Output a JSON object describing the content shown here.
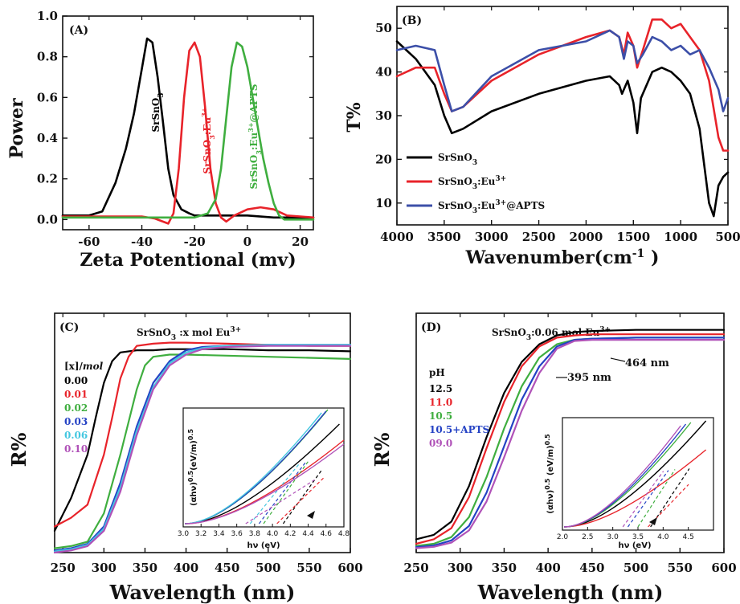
{
  "chart_data": [
    {
      "panel": "(A)",
      "type": "line",
      "xlabel": "Zeta Potentional (mv)",
      "ylabel": "Power",
      "xlim": [
        -70,
        25
      ],
      "ylim": [
        -0.05,
        1.0
      ],
      "xticks": [
        -60,
        -40,
        -20,
        0,
        20
      ],
      "yticks": [
        0.0,
        0.2,
        0.4,
        0.6,
        0.8,
        1.0
      ],
      "xtick_labels": [
        "-60",
        "-40",
        "-20",
        "0",
        "20"
      ],
      "ytick_labels": [
        "0.0",
        "0.2",
        "0.4",
        "0.6",
        "0.8",
        "1.0"
      ],
      "series": [
        {
          "name": "SrSnO3",
          "color": "#000000",
          "x": [
            -70,
            -60,
            -55,
            -50,
            -46,
            -43,
            -40,
            -38,
            -36,
            -34,
            -32,
            -30,
            -28,
            -25,
            -22,
            -20,
            -15,
            -10,
            0,
            10,
            25
          ],
          "y": [
            0.02,
            0.02,
            0.04,
            0.18,
            0.35,
            0.52,
            0.74,
            0.89,
            0.87,
            0.7,
            0.48,
            0.25,
            0.12,
            0.05,
            0.03,
            0.02,
            0.02,
            0.02,
            0.02,
            0.01,
            0.01
          ]
        },
        {
          "name": "SrSnO3:Eu3+",
          "color": "#e8232a",
          "x": [
            -70,
            -40,
            -35,
            -30,
            -28,
            -26,
            -24,
            -22,
            -20,
            -18,
            -16,
            -14,
            -12,
            -10,
            -8,
            -5,
            0,
            5,
            10,
            15,
            25
          ],
          "y": [
            0.015,
            0.015,
            0.005,
            -0.02,
            0.03,
            0.25,
            0.6,
            0.83,
            0.87,
            0.8,
            0.55,
            0.25,
            0.08,
            0.01,
            -0.01,
            0.02,
            0.05,
            0.06,
            0.05,
            0.02,
            0.01
          ]
        },
        {
          "name": "SrSnO3:Eu3+@APTS",
          "color": "#3fae3f",
          "x": [
            -70,
            -30,
            -20,
            -15,
            -12,
            -10,
            -8,
            -6,
            -4,
            -2,
            0,
            2,
            4,
            6,
            8,
            10,
            12,
            14,
            20,
            25
          ],
          "y": [
            0.01,
            0.01,
            0.01,
            0.03,
            0.1,
            0.25,
            0.5,
            0.75,
            0.87,
            0.85,
            0.75,
            0.6,
            0.45,
            0.3,
            0.18,
            0.08,
            0.02,
            0.0,
            0.0,
            0.0
          ]
        }
      ],
      "annotations": [
        "SrSnO3",
        "SrSnO3:Eu3+",
        "SrSnO3:Eu3+@APTS"
      ]
    },
    {
      "panel": "(B)",
      "type": "line",
      "xlabel": "Wavenumber(cm-1 )",
      "ylabel": "T%",
      "xlim": [
        4000,
        500
      ],
      "ylim": [
        5,
        55
      ],
      "xticks": [
        4000,
        3500,
        3000,
        2500,
        2000,
        1500,
        1000,
        500
      ],
      "yticks": [
        10,
        20,
        30,
        40,
        50
      ],
      "xtick_labels": [
        "4000",
        "3500",
        "3000",
        "2500",
        "2000",
        "1500",
        "1000",
        "500"
      ],
      "ytick_labels": [
        "10",
        "20",
        "30",
        "40",
        "50"
      ],
      "series": [
        {
          "name": "SrSnO3",
          "color": "#000000",
          "x": [
            4000,
            3800,
            3600,
            3500,
            3420,
            3300,
            3000,
            2500,
            2000,
            1750,
            1650,
            1620,
            1600,
            1560,
            1500,
            1460,
            1420,
            1300,
            1200,
            1100,
            1000,
            900,
            800,
            700,
            650,
            600,
            550,
            500
          ],
          "y": [
            47,
            43,
            37,
            30,
            26,
            27,
            31,
            35,
            38,
            39,
            37,
            35,
            36,
            38,
            33,
            26,
            34,
            40,
            41,
            40,
            38,
            35,
            27,
            10,
            7,
            14,
            16,
            17
          ]
        },
        {
          "name": "SrSnO3:Eu3+",
          "color": "#e8232a",
          "x": [
            4000,
            3800,
            3600,
            3500,
            3420,
            3300,
            3000,
            2500,
            2000,
            1750,
            1650,
            1600,
            1560,
            1500,
            1460,
            1400,
            1300,
            1200,
            1100,
            1000,
            900,
            800,
            700,
            600,
            550,
            500
          ],
          "y": [
            39,
            41,
            41,
            35,
            31,
            32,
            38,
            44,
            48,
            49.5,
            48,
            44,
            49,
            46,
            41,
            45,
            52,
            52,
            50,
            51,
            48,
            45,
            38,
            25,
            22,
            22
          ]
        },
        {
          "name": "SrSnO3:Eu3+@APTS",
          "color": "#3c4fa8",
          "x": [
            4000,
            3800,
            3600,
            3500,
            3420,
            3300,
            3000,
            2500,
            2000,
            1750,
            1650,
            1600,
            1560,
            1500,
            1460,
            1400,
            1300,
            1200,
            1100,
            1000,
            900,
            800,
            700,
            600,
            550,
            500
          ],
          "y": [
            45,
            46,
            45,
            37,
            31,
            32,
            39,
            45,
            47,
            49.5,
            48,
            43,
            47,
            46,
            42,
            44,
            48,
            47,
            45,
            46,
            44,
            45,
            41,
            36,
            31,
            34
          ]
        }
      ],
      "legend_position": "bottom-left",
      "legend": [
        "SrSnO3",
        "SrSnO3:Eu3+",
        "SrSnO3:Eu3+@APTS"
      ]
    },
    {
      "panel": "(C)",
      "type": "line",
      "xlabel": "Wavelength (nm)",
      "ylabel": "R%",
      "xlim": [
        240,
        600
      ],
      "title": "SrSnO3 :x mol Eu3+",
      "xticks": [
        250,
        300,
        350,
        400,
        450,
        500,
        550,
        600
      ],
      "xtick_labels": [
        "250",
        "300",
        "350",
        "400",
        "450",
        "500",
        "550",
        "600"
      ],
      "legend_title": "[x]/mol",
      "series": [
        {
          "name": "0.00",
          "color": "#000000",
          "x": [
            240,
            260,
            280,
            290,
            300,
            310,
            320,
            340,
            360,
            380,
            400,
            450,
            500,
            550,
            600
          ],
          "y": [
            0.1,
            0.25,
            0.45,
            0.62,
            0.78,
            0.88,
            0.92,
            0.93,
            0.93,
            0.935,
            0.935,
            0.935,
            0.93,
            0.93,
            0.925
          ]
        },
        {
          "name": "0.01",
          "color": "#e8232a",
          "x": [
            240,
            260,
            280,
            300,
            310,
            320,
            330,
            340,
            360,
            380,
            400,
            450,
            500,
            550,
            600
          ],
          "y": [
            0.12,
            0.16,
            0.22,
            0.45,
            0.62,
            0.8,
            0.9,
            0.95,
            0.96,
            0.965,
            0.965,
            0.96,
            0.955,
            0.95,
            0.95
          ]
        },
        {
          "name": "0.02",
          "color": "#3fae3f",
          "x": [
            240,
            260,
            280,
            300,
            320,
            340,
            350,
            360,
            380,
            400,
            450,
            500,
            550,
            600
          ],
          "y": [
            0.02,
            0.03,
            0.05,
            0.18,
            0.45,
            0.75,
            0.86,
            0.9,
            0.91,
            0.91,
            0.905,
            0.9,
            0.895,
            0.89
          ]
        },
        {
          "name": "0.03",
          "color": "#2442c4",
          "x": [
            240,
            260,
            280,
            300,
            320,
            340,
            360,
            380,
            400,
            420,
            450,
            500,
            550,
            600
          ],
          "y": [
            0.01,
            0.02,
            0.04,
            0.12,
            0.32,
            0.58,
            0.78,
            0.88,
            0.93,
            0.945,
            0.95,
            0.955,
            0.955,
            0.955
          ]
        },
        {
          "name": "0.06",
          "color": "#44c7e0",
          "x": [
            240,
            260,
            280,
            300,
            320,
            340,
            360,
            380,
            400,
            420,
            450,
            500,
            550,
            600
          ],
          "y": [
            0.005,
            0.015,
            0.035,
            0.11,
            0.3,
            0.56,
            0.76,
            0.87,
            0.92,
            0.94,
            0.95,
            0.955,
            0.955,
            0.955
          ]
        },
        {
          "name": "0.10",
          "color": "#b052b8",
          "x": [
            240,
            260,
            280,
            300,
            320,
            340,
            360,
            380,
            400,
            420,
            450,
            500,
            550,
            600
          ],
          "y": [
            0.0,
            0.01,
            0.03,
            0.1,
            0.28,
            0.54,
            0.75,
            0.86,
            0.91,
            0.935,
            0.945,
            0.95,
            0.95,
            0.95
          ]
        }
      ],
      "inset": {
        "xlabel": "hν (eV)",
        "ylabel": "(αhν)0.5(eV/m)0.5",
        "xlim": [
          3.0,
          4.8
        ],
        "xticks": [
          3.0,
          3.2,
          3.4,
          3.6,
          3.8,
          4.0,
          4.2,
          4.4,
          4.6,
          4.8
        ],
        "xtick_labels": [
          "3.0",
          "3.2",
          "3.4",
          "3.6",
          "3.8",
          "4.0",
          "4.2",
          "4.4",
          "4.6",
          "4.8"
        ]
      }
    },
    {
      "panel": "(D)",
      "type": "line",
      "xlabel": "Wavelength (nm)",
      "ylabel": "R%",
      "xlim": [
        250,
        600
      ],
      "title": "SrSnO3:0.06 mol Eu3+",
      "xticks": [
        250,
        300,
        350,
        400,
        450,
        500,
        550,
        600
      ],
      "xtick_labels": [
        "250",
        "300",
        "350",
        "400",
        "450",
        "500",
        "550",
        "600"
      ],
      "legend_title": "pH",
      "annotations": [
        "464 nm",
        "395 nm"
      ],
      "series": [
        {
          "name": "12.5",
          "color": "#000000",
          "x": [
            250,
            270,
            290,
            310,
            330,
            350,
            370,
            390,
            410,
            430,
            450,
            500,
            550,
            600
          ],
          "y": [
            0.04,
            0.06,
            0.12,
            0.28,
            0.5,
            0.7,
            0.84,
            0.92,
            0.96,
            0.975,
            0.98,
            0.985,
            0.985,
            0.985
          ]
        },
        {
          "name": "11.0",
          "color": "#e8232a",
          "x": [
            250,
            270,
            290,
            310,
            330,
            350,
            370,
            390,
            410,
            430,
            450,
            500,
            550,
            600
          ],
          "y": [
            0.02,
            0.04,
            0.09,
            0.23,
            0.45,
            0.66,
            0.82,
            0.91,
            0.95,
            0.96,
            0.965,
            0.965,
            0.965,
            0.965
          ]
        },
        {
          "name": "10.5",
          "color": "#3fae3f",
          "x": [
            250,
            270,
            290,
            310,
            330,
            350,
            370,
            390,
            410,
            430,
            450,
            500,
            550,
            600
          ],
          "y": [
            0.01,
            0.02,
            0.05,
            0.14,
            0.32,
            0.54,
            0.73,
            0.86,
            0.92,
            0.94,
            0.945,
            0.95,
            0.95,
            0.95
          ]
        },
        {
          "name": "10.5+APTS",
          "color": "#2442c4",
          "x": [
            250,
            270,
            290,
            310,
            330,
            350,
            370,
            390,
            410,
            430,
            450,
            500,
            550,
            600
          ],
          "y": [
            0.005,
            0.012,
            0.035,
            0.1,
            0.25,
            0.46,
            0.67,
            0.82,
            0.91,
            0.94,
            0.945,
            0.95,
            0.95,
            0.95
          ]
        },
        {
          "name": "09.0",
          "color": "#b052b8",
          "x": [
            250,
            270,
            290,
            310,
            330,
            350,
            370,
            390,
            410,
            430,
            450,
            500,
            550,
            600
          ],
          "y": [
            0.0,
            0.006,
            0.025,
            0.08,
            0.21,
            0.41,
            0.62,
            0.79,
            0.9,
            0.935,
            0.94,
            0.94,
            0.94,
            0.94
          ]
        }
      ],
      "inset": {
        "xlabel": "hν (eV)",
        "ylabel": "(αhν)0.5 (eV/m)0.5",
        "xlim": [
          2.0,
          5.0
        ],
        "xticks": [
          2.0,
          2.5,
          3.0,
          3.5,
          4.0,
          4.5
        ],
        "xtick_labels": [
          "2.0",
          "2.5",
          "3.0",
          "3.5",
          "4.0",
          "4.5"
        ]
      }
    }
  ]
}
